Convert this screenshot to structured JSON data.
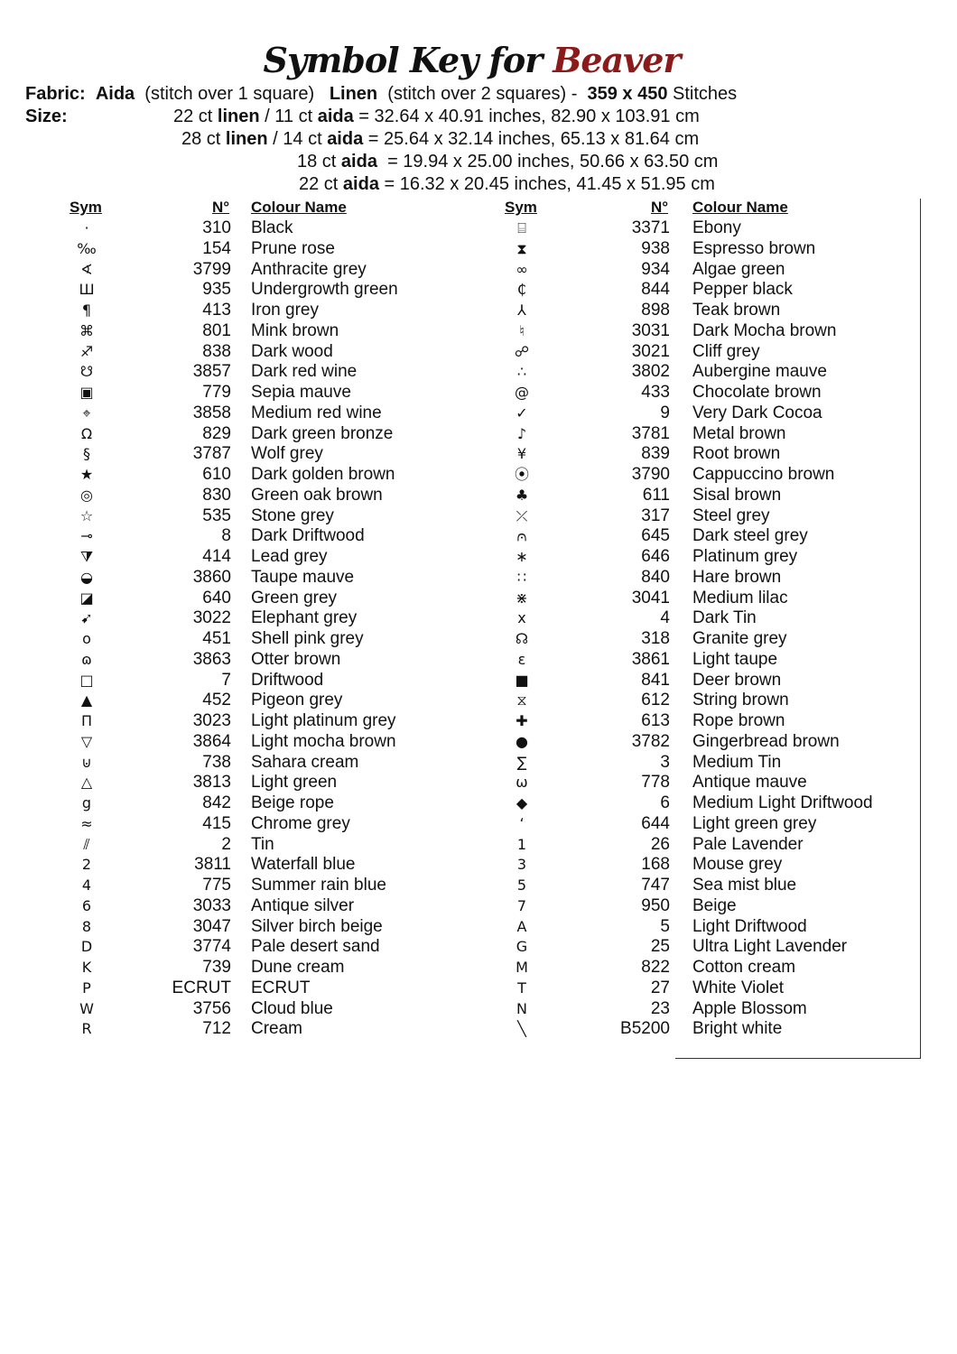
{
  "title": {
    "prefix": "Symbol Key for",
    "pattern_name": "Beaver",
    "accent_color": "#8b1a1a"
  },
  "fabric": {
    "label": "Fabric:",
    "aida": "Aida",
    "aida_note": "(stitch over 1 square)",
    "linen": "Linen",
    "linen_note": "(stitch over 2 squares) -",
    "stitch_count": "359 x 450",
    "stitches_word": "Stitches"
  },
  "size": {
    "label": "Size:",
    "lines": [
      {
        "a": "22 ct ",
        "b": "linen",
        "c": " / 11 ct ",
        "d": "aida",
        "e": " = 32.64 x 40.91 inches, 82.90 x 103.91 cm"
      },
      {
        "a": "28 ct ",
        "b": "linen",
        "c": " / 14 ct ",
        "d": "aida",
        "e": " = 25.64 x 32.14 inches, 65.13 x 81.64 cm"
      },
      {
        "a": "18 ct ",
        "b": "",
        "c": "",
        "d": "aida",
        "e": "  = 19.94 x 25.00 inches, 50.66 x 63.50 cm"
      },
      {
        "a": "22 ct ",
        "b": "",
        "c": "",
        "d": "aida",
        "e": " = 16.32 x 20.45 inches, 41.45 x 51.95 cm"
      }
    ]
  },
  "headers": {
    "sym": "Sym",
    "num": "N°",
    "name": "Colour Name"
  },
  "left": [
    {
      "sym": "·",
      "num": "310",
      "name": "Black"
    },
    {
      "sym": "‰",
      "num": "154",
      "name": "Prune rose"
    },
    {
      "sym": "∢",
      "num": "3799",
      "name": "Anthracite grey"
    },
    {
      "sym": "Ш",
      "num": "935",
      "name": "Undergrowth green"
    },
    {
      "sym": "¶",
      "num": "413",
      "name": "Iron grey"
    },
    {
      "sym": "⌘",
      "num": "801",
      "name": "Mink brown"
    },
    {
      "sym": "♐",
      "num": "838",
      "name": "Dark wood"
    },
    {
      "sym": "☋",
      "num": "3857",
      "name": "Dark red wine"
    },
    {
      "sym": "▣",
      "num": "779",
      "name": "Sepia mauve"
    },
    {
      "sym": "⌖",
      "num": "3858",
      "name": "Medium red wine"
    },
    {
      "sym": "Ω",
      "num": "829",
      "name": "Dark green bronze"
    },
    {
      "sym": "§",
      "num": "3787",
      "name": "Wolf grey"
    },
    {
      "sym": "★",
      "num": "610",
      "name": "Dark golden brown"
    },
    {
      "sym": "◎",
      "num": "830",
      "name": "Green oak brown"
    },
    {
      "sym": "☆",
      "num": "535",
      "name": "Stone grey"
    },
    {
      "sym": "⊸",
      "num": "8",
      "name": "Dark Driftwood"
    },
    {
      "sym": "⧩",
      "num": "414",
      "name": "Lead grey"
    },
    {
      "sym": "◒",
      "num": "3860",
      "name": "Taupe mauve"
    },
    {
      "sym": "◪",
      "num": "640",
      "name": "Green grey"
    },
    {
      "sym": "➹",
      "num": "3022",
      "name": "Elephant grey"
    },
    {
      "sym": "o",
      "num": "451",
      "name": "Shell pink grey"
    },
    {
      "sym": "ɷ",
      "num": "3863",
      "name": "Otter brown"
    },
    {
      "sym": "□",
      "num": "7",
      "name": "Driftwood"
    },
    {
      "sym": "▲",
      "num": "452",
      "name": "Pigeon grey"
    },
    {
      "sym": "Π",
      "num": "3023",
      "name": "Light platinum grey"
    },
    {
      "sym": "▽",
      "num": "3864",
      "name": "Light mocha brown"
    },
    {
      "sym": "⊍",
      "num": "738",
      "name": "Sahara cream"
    },
    {
      "sym": "△",
      "num": "3813",
      "name": "Light green"
    },
    {
      "sym": "g",
      "num": "842",
      "name": "Beige rope"
    },
    {
      "sym": "≈",
      "num": "415",
      "name": "Chrome grey"
    },
    {
      "sym": "⫽",
      "num": "2",
      "name": "Tin"
    },
    {
      "sym": "2",
      "num": "3811",
      "name": "Waterfall blue"
    },
    {
      "sym": "4",
      "num": "775",
      "name": "Summer rain blue"
    },
    {
      "sym": "6",
      "num": "3033",
      "name": "Antique silver"
    },
    {
      "sym": "8",
      "num": "3047",
      "name": "Silver birch beige"
    },
    {
      "sym": "D",
      "num": "3774",
      "name": "Pale desert sand"
    },
    {
      "sym": "K",
      "num": "739",
      "name": "Dune cream"
    },
    {
      "sym": "P",
      "num": "ECRUT",
      "name": "ECRUT"
    },
    {
      "sym": "W",
      "num": "3756",
      "name": "Cloud blue"
    },
    {
      "sym": "R",
      "num": "712",
      "name": "Cream"
    }
  ],
  "right": [
    {
      "sym": "⌸",
      "num": "3371",
      "name": "Ebony"
    },
    {
      "sym": "⧗",
      "num": "938",
      "name": "Espresso brown"
    },
    {
      "sym": "∞",
      "num": "934",
      "name": "Algae green"
    },
    {
      "sym": "₵",
      "num": "844",
      "name": "Pepper black"
    },
    {
      "sym": "⅄",
      "num": "898",
      "name": "Teak brown"
    },
    {
      "sym": "♮",
      "num": "3031",
      "name": "Dark Mocha brown"
    },
    {
      "sym": "☍",
      "num": "3021",
      "name": "Cliff grey"
    },
    {
      "sym": "∴",
      "num": "3802",
      "name": "Aubergine mauve"
    },
    {
      "sym": "@",
      "num": "433",
      "name": "Chocolate brown"
    },
    {
      "sym": "✓",
      "num": "9",
      "name": "Very Dark Cocoa"
    },
    {
      "sym": "♪",
      "num": "3781",
      "name": "Metal brown"
    },
    {
      "sym": "¥",
      "num": "839",
      "name": "Root brown"
    },
    {
      "sym": "⦿",
      "num": "3790",
      "name": "Cappuccino brown"
    },
    {
      "sym": "♣",
      "num": "611",
      "name": "Sisal brown"
    },
    {
      "sym": "⤫",
      "num": "317",
      "name": "Steel grey"
    },
    {
      "sym": "⩀",
      "num": "645",
      "name": "Dark steel grey"
    },
    {
      "sym": "∗",
      "num": "646",
      "name": "Platinum grey"
    },
    {
      "sym": "∷",
      "num": "840",
      "name": "Hare brown"
    },
    {
      "sym": "⋇",
      "num": "3041",
      "name": "Medium lilac"
    },
    {
      "sym": "x",
      "num": "4",
      "name": "Dark Tin"
    },
    {
      "sym": "☊",
      "num": "318",
      "name": "Granite grey"
    },
    {
      "sym": "ɛ",
      "num": "3861",
      "name": "Light taupe"
    },
    {
      "sym": "■",
      "num": "841",
      "name": "Deer brown"
    },
    {
      "sym": "⧖",
      "num": "612",
      "name": "String brown"
    },
    {
      "sym": "✚",
      "num": "613",
      "name": "Rope brown"
    },
    {
      "sym": "●",
      "num": "3782",
      "name": "Gingerbread brown"
    },
    {
      "sym": "∑",
      "num": "3",
      "name": "Medium Tin"
    },
    {
      "sym": "ω",
      "num": "778",
      "name": "Antique mauve"
    },
    {
      "sym": "◆",
      "num": "6",
      "name": "Medium Light Driftwood"
    },
    {
      "sym": "ʻ",
      "num": "644",
      "name": "Light green grey"
    },
    {
      "sym": "1",
      "num": "26",
      "name": "Pale Lavender"
    },
    {
      "sym": "3",
      "num": "168",
      "name": "Mouse grey"
    },
    {
      "sym": "5",
      "num": "747",
      "name": "Sea mist blue"
    },
    {
      "sym": "7",
      "num": "950",
      "name": "Beige"
    },
    {
      "sym": "A",
      "num": "5",
      "name": "Light Driftwood"
    },
    {
      "sym": "G",
      "num": "25",
      "name": "Ultra Light Lavender"
    },
    {
      "sym": "M",
      "num": "822",
      "name": "Cotton cream"
    },
    {
      "sym": "T",
      "num": "27",
      "name": "White Violet"
    },
    {
      "sym": "N",
      "num": "23",
      "name": "Apple Blossom"
    },
    {
      "sym": "╲",
      "num": "B5200",
      "name": "Bright white"
    }
  ]
}
